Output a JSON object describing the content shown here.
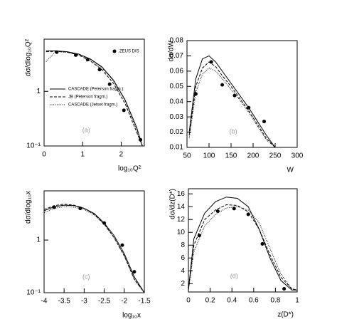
{
  "chart_data": [
    {
      "type": "line",
      "log_y": true,
      "annotation": "(a)",
      "x_label": "log₁₀Q²",
      "y_label": "dσ/dlog₁₀Q²",
      "xlim": [
        0,
        2.6
      ],
      "ylim": [
        0.1,
        9
      ],
      "xticks": [
        0,
        1,
        2
      ],
      "yticks": [
        {
          "value": 0.1,
          "label": "10⁻¹"
        },
        1
      ],
      "legend": "upper right",
      "series": [
        {
          "name": "ZEUS DIS",
          "style": "markers",
          "color": "#000",
          "x": [
            0.33,
            0.82,
            1.13,
            1.44,
            1.7,
            2.07,
            2.5
          ],
          "values": [
            5.2,
            4.6,
            3.8,
            2.5,
            1.35,
            0.45,
            0.13
          ]
        },
        {
          "name": "CASCADE (Peterson fragm.)",
          "style": "solid",
          "color": "#000",
          "x": [
            0.05,
            0.3,
            0.6,
            0.9,
            1.2,
            1.5,
            1.8,
            2.1,
            2.4,
            2.55
          ],
          "values": [
            5.5,
            5.5,
            5.3,
            4.8,
            3.9,
            2.8,
            1.6,
            0.7,
            0.22,
            0.1
          ]
        },
        {
          "name": "JB (Peterson fragm.)",
          "style": "dashed",
          "color": "#000",
          "x": [
            0.05,
            0.3,
            0.6,
            0.9,
            1.2,
            1.5,
            1.8,
            2.1,
            2.4,
            2.55
          ],
          "values": [
            5.3,
            5.4,
            5.2,
            4.6,
            3.6,
            2.5,
            1.4,
            0.6,
            0.18,
            0.1
          ]
        },
        {
          "name": "CASCADE (Jetset fragm.)",
          "style": "dotted",
          "color": "#000",
          "x": [
            0.05,
            0.3,
            0.6,
            0.9,
            1.2,
            1.5,
            1.8,
            2.1,
            2.4,
            2.55
          ],
          "values": [
            3.5,
            5.3,
            5.2,
            4.7,
            3.8,
            2.7,
            1.55,
            0.68,
            0.2,
            0.1
          ]
        }
      ]
    },
    {
      "type": "line",
      "log_y": false,
      "annotation": "(b)",
      "x_label": "W",
      "y_label": "dσ/dW",
      "xlim": [
        50,
        300
      ],
      "ylim": [
        0.01,
        0.08
      ],
      "xticks": [
        50,
        100,
        150,
        200,
        250,
        300
      ],
      "yticks": [
        0.01,
        0.02,
        0.03,
        0.04,
        0.05,
        0.06,
        0.07,
        0.08
      ],
      "series": [
        {
          "style": "markers",
          "color": "#000",
          "x": [
            70,
            105,
            130,
            158,
            190,
            225
          ],
          "values": [
            0.045,
            0.066,
            0.051,
            0.044,
            0.036,
            0.027
          ]
        },
        {
          "style": "solid",
          "color": "#000",
          "x": [
            55,
            70,
            85,
            100,
            115,
            130,
            150,
            170,
            190,
            210,
            230,
            250
          ],
          "values": [
            0.02,
            0.055,
            0.068,
            0.07,
            0.066,
            0.06,
            0.052,
            0.044,
            0.036,
            0.027,
            0.018,
            0.01
          ]
        },
        {
          "style": "dashed",
          "color": "#000",
          "x": [
            55,
            70,
            85,
            100,
            115,
            130,
            150,
            170,
            190,
            210,
            230,
            250
          ],
          "values": [
            0.018,
            0.05,
            0.062,
            0.066,
            0.063,
            0.057,
            0.05,
            0.042,
            0.034,
            0.025,
            0.016,
            0.01
          ]
        },
        {
          "style": "dotted",
          "color": "#000",
          "x": [
            55,
            70,
            85,
            100,
            115,
            130,
            150,
            170,
            190,
            210,
            230,
            250
          ],
          "values": [
            0.016,
            0.046,
            0.058,
            0.062,
            0.06,
            0.055,
            0.048,
            0.041,
            0.033,
            0.024,
            0.015,
            0.01
          ]
        }
      ]
    },
    {
      "type": "line",
      "log_y": true,
      "annotation": "(c)",
      "x_label": "log₁₀x",
      "y_label": "dσ/dlog₁₀x",
      "xlim": [
        -4,
        -1.5
      ],
      "ylim": [
        0.1,
        8.6
      ],
      "xticks": [
        -4,
        -3.5,
        -3,
        -2.5,
        -2,
        -1.5
      ],
      "yticks": [
        {
          "value": 0.1,
          "label": "10⁻¹"
        },
        1
      ],
      "series": [
        {
          "style": "markers",
          "color": "#000",
          "x": [
            -3.75,
            -3.1,
            -2.5,
            -2.05,
            -1.75
          ],
          "values": [
            4.2,
            4.0,
            2.1,
            0.8,
            0.25
          ]
        },
        {
          "style": "solid",
          "color": "#000",
          "x": [
            -4,
            -3.75,
            -3.5,
            -3.25,
            -3,
            -2.75,
            -2.5,
            -2.25,
            -2,
            -1.75,
            -1.5
          ],
          "values": [
            3.6,
            4.3,
            4.6,
            4.5,
            4.0,
            3.2,
            2.1,
            1.2,
            0.55,
            0.2,
            0.1
          ]
        },
        {
          "style": "dashed",
          "color": "#000",
          "x": [
            -4,
            -3.75,
            -3.5,
            -3.25,
            -3,
            -2.75,
            -2.5,
            -2.25,
            -2,
            -1.75,
            -1.5
          ],
          "values": [
            3.8,
            4.5,
            4.8,
            4.6,
            4.0,
            3.1,
            2.0,
            1.1,
            0.5,
            0.18,
            0.1
          ]
        },
        {
          "style": "dotted",
          "color": "#000",
          "x": [
            -4,
            -3.75,
            -3.5,
            -3.25,
            -3,
            -2.75,
            -2.5,
            -2.25,
            -2,
            -1.75,
            -1.5
          ],
          "values": [
            3.3,
            4.0,
            4.3,
            4.2,
            3.8,
            3.0,
            2.0,
            1.1,
            0.5,
            0.18,
            0.1
          ]
        }
      ]
    },
    {
      "type": "line",
      "log_y": false,
      "annotation": "(d)",
      "x_label": "z(D*)",
      "y_label": "dσ/dz(D*)",
      "xlim": [
        0,
        1
      ],
      "ylim": [
        0.7,
        16.8
      ],
      "xticks": [
        0,
        0.2,
        0.4,
        0.6,
        0.8,
        1
      ],
      "yticks": [
        2,
        4,
        6,
        8,
        10,
        12,
        14,
        16
      ],
      "series": [
        {
          "style": "markers",
          "color": "#000",
          "x": [
            0.1,
            0.27,
            0.42,
            0.55,
            0.68,
            0.88
          ],
          "values": [
            9.5,
            13.3,
            13.7,
            12.8,
            8.2,
            1.2
          ]
        },
        {
          "style": "solid",
          "color": "#000",
          "x": [
            0,
            0.05,
            0.15,
            0.25,
            0.35,
            0.45,
            0.55,
            0.65,
            0.75,
            0.85,
            0.95,
            1
          ],
          "values": [
            1,
            9,
            13,
            14.8,
            15.5,
            15.3,
            14,
            10.5,
            6,
            2.5,
            1,
            1
          ]
        },
        {
          "style": "dashed",
          "color": "#000",
          "x": [
            0,
            0.05,
            0.15,
            0.25,
            0.35,
            0.45,
            0.55,
            0.65,
            0.75,
            0.85,
            0.95,
            1
          ],
          "values": [
            1,
            8,
            12,
            13.5,
            14.3,
            14.2,
            13.2,
            10.5,
            6.5,
            3,
            1.2,
            1
          ]
        },
        {
          "style": "dotted",
          "color": "#000",
          "x": [
            0,
            0.05,
            0.15,
            0.25,
            0.35,
            0.45,
            0.55,
            0.65,
            0.75,
            0.85,
            0.95,
            1
          ],
          "values": [
            1,
            7,
            11,
            12.8,
            13.8,
            14,
            13.5,
            11.5,
            7.5,
            3.5,
            1.2,
            1
          ]
        }
      ]
    }
  ]
}
